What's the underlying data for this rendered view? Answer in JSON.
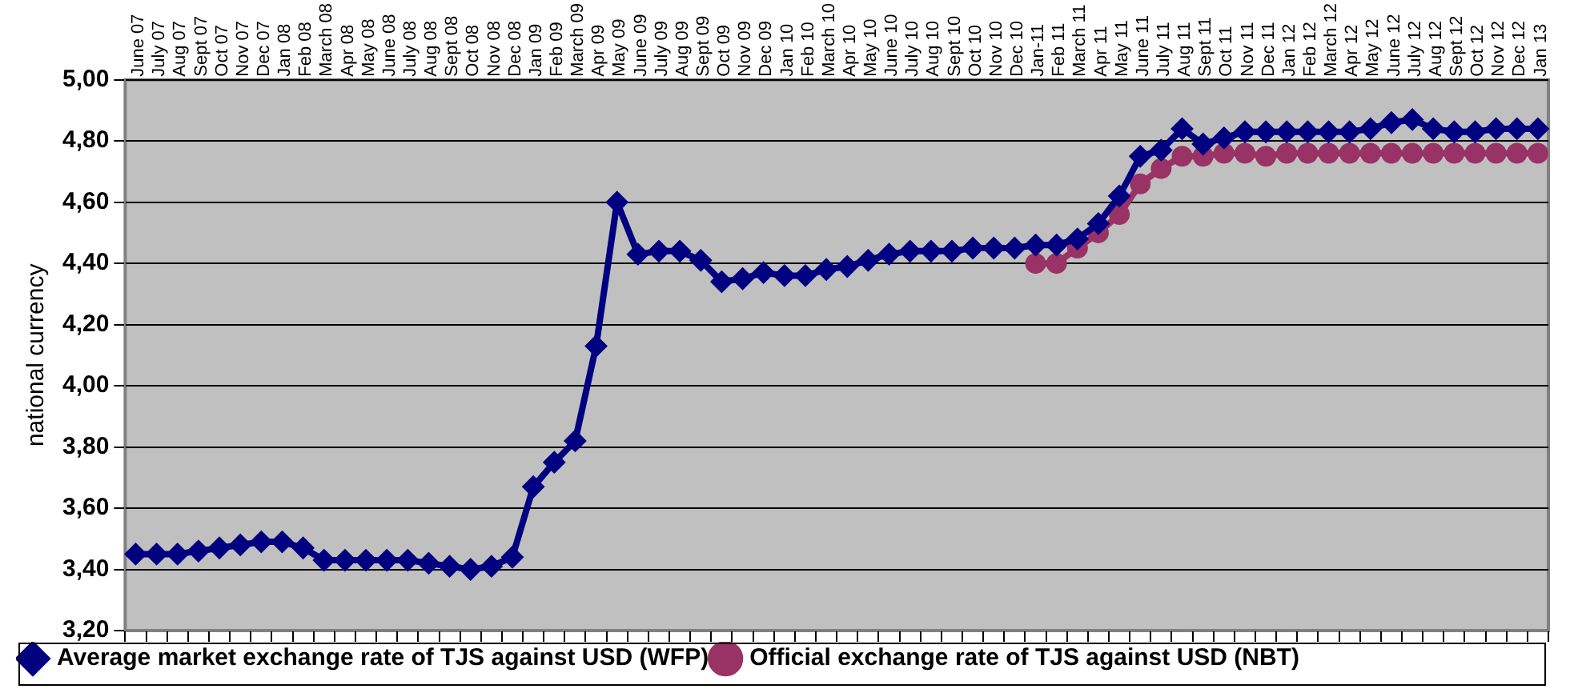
{
  "chart_data": {
    "type": "line",
    "categories": [
      "June 07",
      "July 07",
      "Aug 07",
      "Sept 07",
      "Oct 07",
      "Nov 07",
      "Dec 07",
      "Jan 08",
      "Feb 08",
      "March 08",
      "Apr 08",
      "May 08",
      "June 08",
      "July 08",
      "Aug 08",
      "Sept 08",
      "Oct 08",
      "Nov 08",
      "Dec 08",
      "Jan 09",
      "Feb 09",
      "March 09",
      "Apr 09",
      "May 09",
      "June 09",
      "July 09",
      "Aug 09",
      "Sept 09",
      "Oct 09",
      "Nov 09",
      "Dec 09",
      "Jan 10",
      "Feb 10",
      "March 10",
      "Apr 10",
      "May 10",
      "June 10",
      "July 10",
      "Aug 10",
      "Sept 10",
      "Oct 10",
      "Nov 10",
      "Dec 10",
      "Jan-11",
      "Feb 11",
      "March 11",
      "Apr 11",
      "May 11",
      "June 11",
      "July 11",
      "Aug 11",
      "Sept 11",
      "Oct 11",
      "Nov 11",
      "Dec 11",
      "Jan 12",
      "Feb 12",
      "March 12",
      "Apr 12",
      "May 12",
      "June 12",
      "July 12",
      "Aug 12",
      "Sept 12",
      "Oct 12",
      "Nov 12",
      "Dec 12",
      "Jan 13"
    ],
    "ylabel": "national currency",
    "ylim": [
      3.2,
      5.0
    ],
    "yticks": [
      {
        "value": 3.2,
        "label": "3,20"
      },
      {
        "value": 3.4,
        "label": "3,40"
      },
      {
        "value": 3.6,
        "label": "3,60"
      },
      {
        "value": 3.8,
        "label": "3,80"
      },
      {
        "value": 4.0,
        "label": "4,00"
      },
      {
        "value": 4.2,
        "label": "4,20"
      },
      {
        "value": 4.4,
        "label": "4,40"
      },
      {
        "value": 4.6,
        "label": "4,60"
      },
      {
        "value": 4.8,
        "label": "4,80"
      },
      {
        "value": 5.0,
        "label": "5,00"
      }
    ],
    "grid": "y",
    "legend": "bottom",
    "series": [
      {
        "name": "Average market exchange rate of TJS against USD (WFP)",
        "color": "#000080",
        "marker": "diamond",
        "values": [
          3.45,
          3.45,
          3.45,
          3.46,
          3.47,
          3.48,
          3.49,
          3.49,
          3.47,
          3.43,
          3.43,
          3.43,
          3.43,
          3.43,
          3.42,
          3.41,
          3.4,
          3.41,
          3.44,
          3.67,
          3.75,
          3.82,
          4.13,
          4.6,
          4.43,
          4.44,
          4.44,
          4.41,
          4.34,
          4.35,
          4.37,
          4.36,
          4.36,
          4.38,
          4.39,
          4.41,
          4.43,
          4.44,
          4.44,
          4.44,
          4.45,
          4.45,
          4.45,
          4.46,
          4.46,
          4.48,
          4.53,
          4.62,
          4.75,
          4.77,
          4.84,
          4.79,
          4.81,
          4.83,
          4.83,
          4.83,
          4.83,
          4.83,
          4.83,
          4.84,
          4.86,
          4.87,
          4.84,
          4.83,
          4.83,
          4.84,
          4.84,
          4.84
        ]
      },
      {
        "name": "Official exchange rate of TJS against USD (NBT)",
        "color": "#993366",
        "marker": "circle",
        "values": [
          null,
          null,
          null,
          null,
          null,
          null,
          null,
          null,
          null,
          null,
          null,
          null,
          null,
          null,
          null,
          null,
          null,
          null,
          null,
          null,
          null,
          null,
          null,
          null,
          null,
          null,
          null,
          null,
          null,
          null,
          null,
          null,
          null,
          null,
          null,
          null,
          null,
          null,
          null,
          null,
          null,
          null,
          null,
          4.4,
          4.4,
          4.45,
          4.5,
          4.56,
          4.66,
          4.71,
          4.75,
          4.75,
          4.76,
          4.76,
          4.75,
          4.76,
          4.76,
          4.76,
          4.76,
          4.76,
          4.76,
          4.76,
          4.76,
          4.76,
          4.76,
          4.76,
          4.76,
          4.76
        ]
      }
    ]
  }
}
